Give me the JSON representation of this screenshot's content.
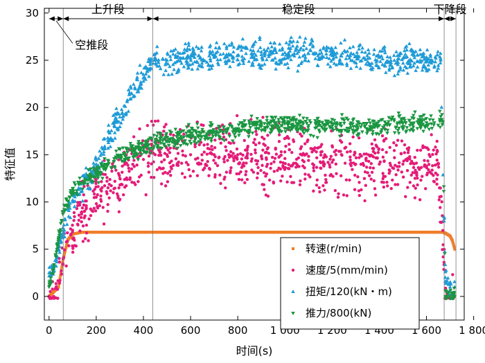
{
  "chart_data": {
    "type": "scatter",
    "xlabel": "时间(s)",
    "ylabel": "特征值",
    "xlim": [
      -20,
      1760
    ],
    "ylim": [
      -2.5,
      30.5
    ],
    "x_ticks": [
      0,
      200,
      400,
      600,
      800,
      1000,
      1200,
      1400,
      1600,
      1800
    ],
    "x_tick_labels": [
      "0",
      "200",
      "400",
      "600",
      "800",
      "1 000",
      "1 200",
      "1 400",
      "1 600",
      "1 800"
    ],
    "y_ticks": [
      0,
      5,
      10,
      15,
      20,
      25,
      30
    ],
    "y_tick_labels": [
      "0",
      "5",
      "10",
      "15",
      "20",
      "25",
      "30"
    ],
    "grid": false,
    "legend_position": "bottom-right",
    "phases": [
      {
        "label": "空推段",
        "x_start": 0,
        "x_end": 60
      },
      {
        "label": "上升段",
        "x_start": 60,
        "x_end": 440
      },
      {
        "label": "稳定段",
        "x_start": 440,
        "x_end": 1675
      },
      {
        "label": "下降段",
        "x_start": 1675,
        "x_end": 1725
      }
    ],
    "series": [
      {
        "name": "转速(r/min)",
        "marker": "square",
        "color": "#F07F2A",
        "x": [
          0,
          40,
          60,
          80,
          100,
          140,
          200,
          400,
          600,
          800,
          1000,
          1200,
          1400,
          1600,
          1670,
          1680,
          1700,
          1710,
          1720
        ],
        "y": [
          0,
          1,
          4,
          6,
          6.6,
          6.8,
          6.8,
          6.8,
          6.8,
          6.8,
          6.8,
          6.8,
          6.8,
          6.8,
          6.8,
          6.7,
          6.4,
          5.9,
          5.0
        ]
      },
      {
        "name": "速度/5(mm/min)",
        "marker": "circle",
        "color": "#E41C78",
        "x": [
          0,
          20,
          60,
          100,
          150,
          200,
          250,
          300,
          350,
          400,
          450,
          500,
          600,
          700,
          800,
          900,
          1000,
          1100,
          1200,
          1300,
          1400,
          1500,
          1600,
          1650,
          1680,
          1700,
          1720
        ],
        "y": [
          0,
          0,
          4,
          7,
          9,
          10.5,
          11.5,
          12.5,
          13.5,
          14.5,
          15,
          15,
          15,
          15,
          15,
          14.8,
          14.6,
          14.4,
          14.2,
          14,
          14,
          14,
          13.8,
          14,
          0,
          0,
          0
        ]
      },
      {
        "name": "扭矩/120(kN・m)",
        "marker": "triangle-up",
        "color": "#1F9BD7",
        "x": [
          0,
          20,
          40,
          60,
          100,
          150,
          200,
          250,
          300,
          350,
          400,
          430,
          450,
          500,
          600,
          700,
          800,
          900,
          1000,
          1100,
          1200,
          1300,
          1400,
          1500,
          1600,
          1660,
          1680,
          1700,
          1720
        ],
        "y": [
          2.5,
          3,
          5,
          7,
          10,
          12,
          14,
          16.5,
          19,
          21.5,
          23.5,
          24.8,
          25,
          25,
          25.2,
          25.3,
          25.5,
          25.6,
          25.8,
          25.7,
          25.5,
          25.4,
          25.3,
          25.2,
          25,
          25,
          2,
          1,
          1
        ]
      },
      {
        "name": "推力/800(kN)",
        "marker": "triangle-down",
        "color": "#1A9641",
        "x": [
          0,
          20,
          40,
          60,
          100,
          150,
          200,
          250,
          300,
          350,
          400,
          450,
          500,
          600,
          700,
          800,
          900,
          1000,
          1100,
          1200,
          1300,
          1400,
          1500,
          1600,
          1670,
          1680,
          1700,
          1720
        ],
        "y": [
          1,
          3,
          6,
          9,
          11,
          12,
          13,
          14,
          14.8,
          15.4,
          15.8,
          16.2,
          16.5,
          17,
          17.4,
          17.7,
          18,
          18.3,
          18.1,
          18,
          18,
          18.1,
          18.3,
          18.4,
          18.5,
          0,
          0,
          0
        ]
      }
    ]
  }
}
